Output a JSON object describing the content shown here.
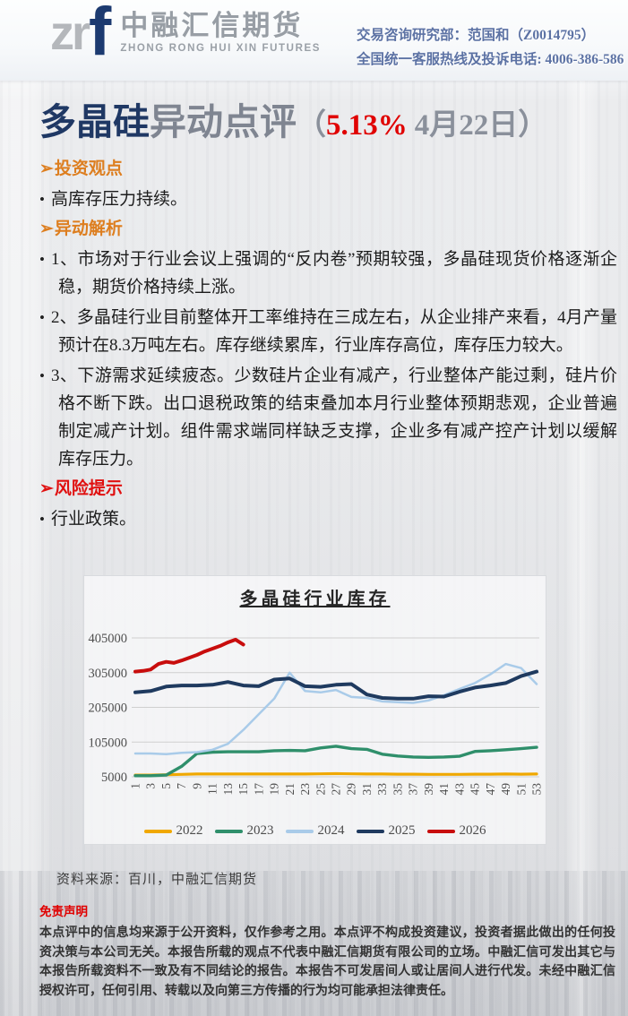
{
  "header": {
    "logo_zr": "zr",
    "logo_f": "f",
    "company_cn": "中融汇信期货",
    "company_en": "ZHONG RONG HUI XIN FUTURES",
    "contact_line1": "交易咨询研究部：范国和（Z0014795）",
    "contact_line2": "全国统一客服热线及投诉电话: 4006-386-586"
  },
  "title": {
    "highlight": "多晶硅",
    "rest": "异动点评",
    "paren_open": "（",
    "percent": "5.13%",
    "date": "4月22日",
    "paren_close": "）"
  },
  "sections": [
    {
      "kind": "heading",
      "color": "orange",
      "marker": "➢",
      "text": "投资观点"
    },
    {
      "kind": "bullet",
      "marker": "•",
      "text": "高库存压力持续。"
    },
    {
      "kind": "heading",
      "color": "orange",
      "marker": "➢",
      "text": "异动解析"
    },
    {
      "kind": "bullet",
      "marker": "•",
      "text": "1、市场对于行业会议上强调的“反内卷”预期较强，多晶硅现货价格逐渐企稳，期货价格持续上涨。"
    },
    {
      "kind": "bullet",
      "marker": "•",
      "text": "2、多晶硅行业目前整体开工率维持在三成左右，从企业排产来看，4月产量预计在8.3万吨左右。库存继续累库，行业库存高位，库存压力较大。"
    },
    {
      "kind": "bullet",
      "marker": "•",
      "text": "3、下游需求延续疲态。少数硅片企业有减产，行业整体产能过剩，硅片价格不断下跌。出口退税政策的结束叠加本月行业整体预期悲观，企业普遍制定减产计划。组件需求端同样缺乏支撑，企业多有减产控产计划以缓解库存压力。"
    },
    {
      "kind": "heading",
      "color": "red",
      "marker": "➢",
      "text": "风险提示"
    },
    {
      "kind": "bullet",
      "marker": "•",
      "text": "行业政策。"
    }
  ],
  "chart_data": {
    "type": "line",
    "title": "多晶硅行业库存",
    "xlabel": "",
    "ylabel": "",
    "ylim": [
      5000,
      405000
    ],
    "yticks": [
      5000,
      105000,
      205000,
      305000,
      405000
    ],
    "x_odd_weeks": [
      1,
      3,
      5,
      7,
      9,
      11,
      13,
      15,
      17,
      19,
      21,
      23,
      25,
      27,
      29,
      31,
      33,
      35,
      37,
      39,
      41,
      43,
      45,
      47,
      49,
      51,
      53
    ],
    "grid": "horizontal",
    "legend_position": "bottom",
    "series": [
      {
        "name": "2022",
        "color": "#F0A800",
        "values": [
          10000,
          10000,
          11000,
          12000,
          13000,
          13000,
          13000,
          13000,
          13000,
          13000,
          13000,
          13000,
          13500,
          14000,
          13500,
          13000,
          13000,
          12500,
          12500,
          12000,
          12000,
          12000,
          12500,
          12500,
          13000,
          12500,
          13000
        ]
      },
      {
        "name": "2023",
        "color": "#2F8F6B",
        "values": [
          8000,
          8000,
          10000,
          35000,
          72000,
          76000,
          77000,
          77000,
          77000,
          80000,
          81000,
          80000,
          88000,
          93000,
          86000,
          84000,
          70000,
          65000,
          62000,
          61000,
          62000,
          64000,
          78000,
          80000,
          83000,
          86000,
          90000
        ]
      },
      {
        "name": "2024",
        "color": "#A9CBE9",
        "values": [
          72000,
          72000,
          70000,
          74000,
          76000,
          83000,
          100000,
          140000,
          185000,
          230000,
          305000,
          252000,
          248000,
          255000,
          235000,
          232000,
          222000,
          220000,
          218000,
          225000,
          240000,
          258000,
          275000,
          300000,
          330000,
          318000,
          272000
        ]
      },
      {
        "name": "2025",
        "color": "#1F3A5F",
        "values": [
          248000,
          252000,
          265000,
          268000,
          268000,
          270000,
          278000,
          268000,
          266000,
          285000,
          288000,
          266000,
          264000,
          270000,
          272000,
          242000,
          232000,
          230000,
          230000,
          237000,
          236000,
          250000,
          262000,
          268000,
          275000,
          295000,
          308000
        ]
      },
      {
        "name": "2026",
        "color": "#C80D0D",
        "x": [
          1,
          2,
          3,
          4,
          5,
          6,
          7,
          8,
          9,
          10,
          11,
          12,
          13,
          14,
          15
        ],
        "values": [
          308000,
          310000,
          314000,
          330000,
          336000,
          333000,
          340000,
          348000,
          356000,
          366000,
          374000,
          382000,
          392000,
          400000,
          386000
        ]
      }
    ]
  },
  "source_note": "资料来源：百川，中融汇信期货",
  "disclaimer_title": "免责声明",
  "disclaimer_body": "本点评中的信息均来源于公开资料，仅作参考之用。本点评不构成投资建议，投资者据此做出的任何投资决策与本公司无关。本报告所载的观点不代表中融汇信期货有限公司的立场。中融汇信可发出其它与本报告所载资料不一致及有不同结论的报告。本报告不可发居间人或让居间人进行代发。未经中融汇信授权许可，任何引用、转载以及向第三方传播的行为均可能承担法律责任。",
  "colors": {
    "accent_navy": "#1F3864",
    "accent_orange": "#DD7E1F",
    "accent_red": "#E00000",
    "header_text_blue": "#5C72A4"
  }
}
